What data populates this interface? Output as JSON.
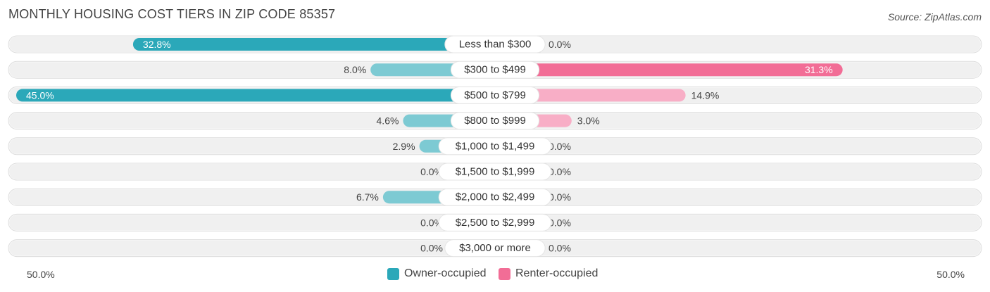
{
  "title": "MONTHLY HOUSING COST TIERS IN ZIP CODE 85357",
  "source": "Source: ZipAtlas.com",
  "colors": {
    "owner_strong": "#2ba8b9",
    "owner_light": "#7dcad3",
    "renter_strong": "#f26d96",
    "renter_light": "#f8aec6",
    "row_bg": "#f0f0f0"
  },
  "axis": {
    "left_label": "50.0%",
    "right_label": "50.0%"
  },
  "legend": {
    "owner": "Owner-occupied",
    "renter": "Renter-occupied"
  },
  "chart_data": {
    "type": "bar",
    "orientation": "horizontal-diverging",
    "xlim": [
      -50,
      50
    ],
    "categories": [
      "Less than $300",
      "$300 to $499",
      "$500 to $799",
      "$800 to $999",
      "$1,000 to $1,499",
      "$1,500 to $1,999",
      "$2,000 to $2,499",
      "$2,500 to $2,999",
      "$3,000 or more"
    ],
    "series": [
      {
        "name": "Owner-occupied",
        "values": [
          32.8,
          8.0,
          45.0,
          4.6,
          2.9,
          0.0,
          6.7,
          0.0,
          0.0
        ],
        "labels": [
          "32.8%",
          "8.0%",
          "45.0%",
          "4.6%",
          "2.9%",
          "0.0%",
          "6.7%",
          "0.0%",
          "0.0%"
        ]
      },
      {
        "name": "Renter-occupied",
        "values": [
          0.0,
          31.3,
          14.9,
          3.0,
          0.0,
          0.0,
          0.0,
          0.0,
          0.0
        ],
        "labels": [
          "0.0%",
          "31.3%",
          "14.9%",
          "3.0%",
          "0.0%",
          "0.0%",
          "0.0%",
          "0.0%",
          "0.0%"
        ]
      }
    ]
  }
}
